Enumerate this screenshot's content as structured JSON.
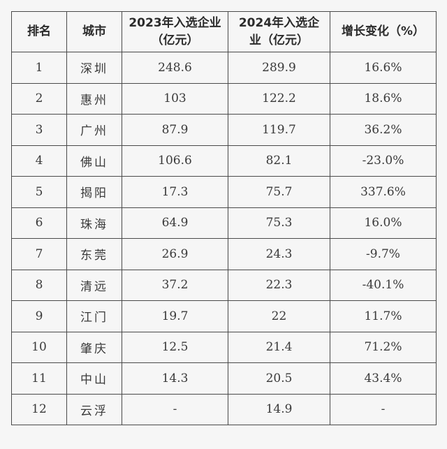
{
  "headers": {
    "rank": "排名",
    "city": "城市",
    "y2023": "2023年入选企业（亿元）",
    "y2024": "2024年入选企业（亿元）",
    "change": "增长变化（%）"
  },
  "rows": [
    {
      "rank": "1",
      "city": "深圳",
      "y2023": "248.6",
      "y2024": "289.9",
      "change": "16.6%"
    },
    {
      "rank": "2",
      "city": "惠州",
      "y2023": "103",
      "y2024": "122.2",
      "change": "18.6%"
    },
    {
      "rank": "3",
      "city": "广州",
      "y2023": "87.9",
      "y2024": "119.7",
      "change": "36.2%"
    },
    {
      "rank": "4",
      "city": "佛山",
      "y2023": "106.6",
      "y2024": "82.1",
      "change": "-23.0%"
    },
    {
      "rank": "5",
      "city": "揭阳",
      "y2023": "17.3",
      "y2024": "75.7",
      "change": "337.6%"
    },
    {
      "rank": "6",
      "city": "珠海",
      "y2023": "64.9",
      "y2024": "75.3",
      "change": "16.0%"
    },
    {
      "rank": "7",
      "city": "东莞",
      "y2023": "26.9",
      "y2024": "24.3",
      "change": "-9.7%"
    },
    {
      "rank": "8",
      "city": "清远",
      "y2023": "37.2",
      "y2024": "22.3",
      "change": "-40.1%"
    },
    {
      "rank": "9",
      "city": "江门",
      "y2023": "19.7",
      "y2024": "22",
      "change": "11.7%"
    },
    {
      "rank": "10",
      "city": "肇庆",
      "y2023": "12.5",
      "y2024": "21.4",
      "change": "71.2%"
    },
    {
      "rank": "11",
      "city": "中山",
      "y2023": "14.3",
      "y2024": "20.5",
      "change": "43.4%"
    },
    {
      "rank": "12",
      "city": "云浮",
      "y2023": "-",
      "y2024": "14.9",
      "change": "-"
    }
  ]
}
